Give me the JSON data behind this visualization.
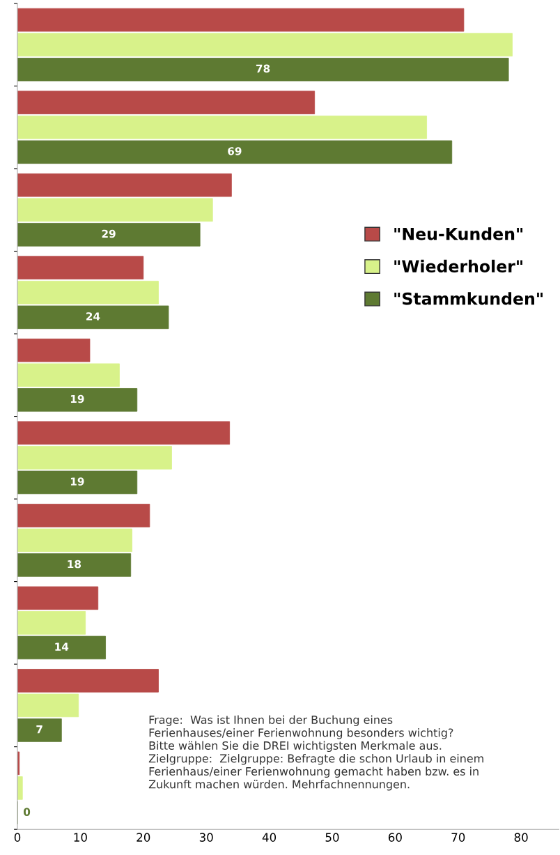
{
  "chart_data": {
    "type": "bar",
    "orientation": "horizontal",
    "categories": [
      null,
      null,
      null,
      null,
      null,
      null,
      null,
      null,
      null,
      null
    ],
    "xlim": [
      0,
      86
    ],
    "xticks": [
      0,
      10,
      20,
      30,
      40,
      50,
      60,
      70,
      80
    ],
    "tick_labels": "x",
    "grid": false,
    "legend": "right",
    "series": [
      {
        "name": "\"Neu-Kunden\"",
        "color": "#b84a48",
        "values": [
          70.9,
          47.2,
          34,
          20,
          11.5,
          33.7,
          21,
          12.8,
          22.4,
          0.3
        ]
      },
      {
        "name": "\"Wiederholer\"",
        "color": "#d8f28a",
        "values": [
          78.6,
          65,
          31,
          22.4,
          16.2,
          24.5,
          18.2,
          10.8,
          9.7,
          0.8
        ]
      },
      {
        "name": "\"Stammkunden\"",
        "color": "#5e7a32",
        "values": [
          78,
          69,
          29,
          24,
          19,
          19,
          18,
          14,
          7,
          0
        ],
        "value_labels": [
          "78",
          "69",
          "29",
          "24",
          "19",
          "19",
          "18",
          "14",
          "7",
          "0"
        ]
      }
    ],
    "annotations": [
      "Frage:  Was ist Ihnen bei der Buchung eines",
      "Ferienhauses/einer Ferienwohnung besonders wichtig?",
      "Bitte wählen Sie die DREI wichtigsten Merkmale aus.",
      "Zielgruppe:  Zielgruppe: Befragte die schon Urlaub in einem",
      "Ferienhaus/einer Ferienwohnung gemacht haben bzw. es in",
      "Zukunft machen würden. Mehrfachnennungen."
    ]
  }
}
